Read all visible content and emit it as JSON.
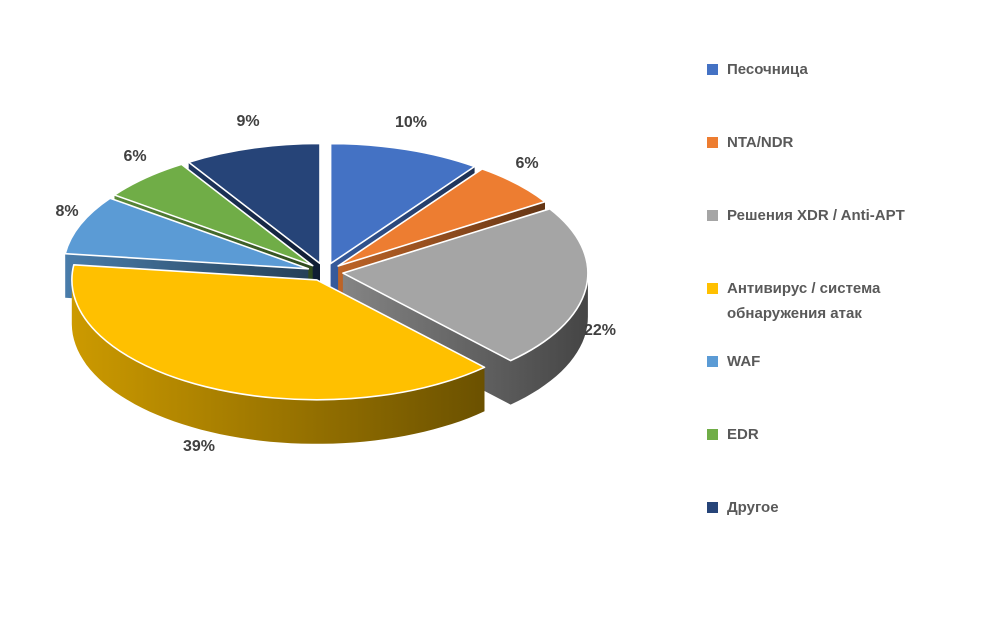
{
  "chart_data": {
    "type": "pie",
    "style": "3d-exploded-pie",
    "title": "",
    "legend_position": "right",
    "start_angle_deg": 0,
    "grid": false,
    "background_color": "#FFFFFF",
    "label_color": "#404040",
    "legend_text_color": "#595959",
    "series": [
      {
        "key": "sandbox",
        "label": "Песочница",
        "value": 10,
        "display": "10%",
        "color": "#4472C4"
      },
      {
        "key": "nta-ndr",
        "label": "NTA/NDR",
        "value": 6,
        "display": "6%",
        "color": "#ED7D31"
      },
      {
        "key": "xdr-anti-apt",
        "label": "Решения XDR / Anti-APT",
        "value": 22,
        "display": "22%",
        "color": "#A5A5A5"
      },
      {
        "key": "antivirus-ids",
        "label": "Антивирус / система обнаружения атак",
        "value": 39,
        "display": "39%",
        "color": "#FFC000"
      },
      {
        "key": "waf",
        "label": "WAF",
        "value": 8,
        "display": "8%",
        "color": "#5B9BD5"
      },
      {
        "key": "edr",
        "label": "EDR",
        "value": 6,
        "display": "6%",
        "color": "#70AD47"
      },
      {
        "key": "other",
        "label": "Другое",
        "value": 9,
        "display": "9%",
        "color": "#264478"
      }
    ]
  }
}
